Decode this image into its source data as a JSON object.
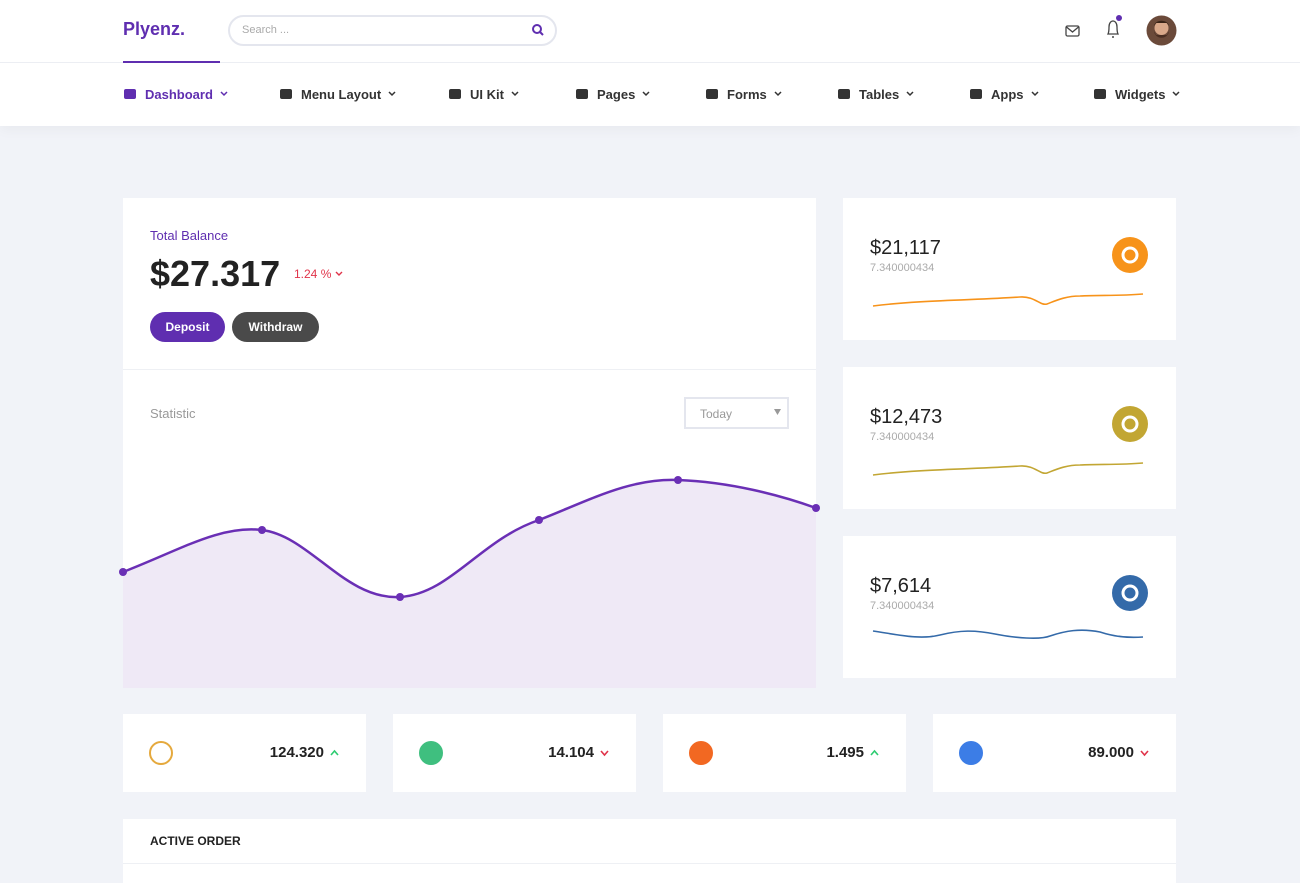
{
  "header": {
    "logo": "Plyenz.",
    "search_placeholder": "Search ..."
  },
  "nav": [
    {
      "label": "Dashboard",
      "active": true
    },
    {
      "label": "Menu Layout"
    },
    {
      "label": "UI Kit"
    },
    {
      "label": "Pages"
    },
    {
      "label": "Forms"
    },
    {
      "label": "Tables"
    },
    {
      "label": "Apps"
    },
    {
      "label": "Widgets"
    }
  ],
  "balance": {
    "title": "Total Balance",
    "amount": "$27.317",
    "change": "1.24 %",
    "deposit": "Deposit",
    "withdraw": "Withdraw"
  },
  "statistic": {
    "title": "Statistic",
    "period": "Today"
  },
  "coins": [
    {
      "price": "$21,117",
      "sub": "7.340000434",
      "color": "#f7931a"
    },
    {
      "price": "$12,473",
      "sub": "7.340000434",
      "color": "#c2a633"
    },
    {
      "price": "$7,614",
      "sub": "7.340000434",
      "color": "#346aa9"
    }
  ],
  "tickers": [
    {
      "value": "124.320",
      "trend": "up",
      "color": "#e5a93d"
    },
    {
      "value": "14.104",
      "trend": "down",
      "color": "#3fbf7f"
    },
    {
      "value": "1.495",
      "trend": "up",
      "color": "#f26822"
    },
    {
      "value": "89.000",
      "trend": "down",
      "color": "#3c7de6"
    }
  ],
  "active_order": {
    "title": "ACTIVE ORDER"
  }
}
